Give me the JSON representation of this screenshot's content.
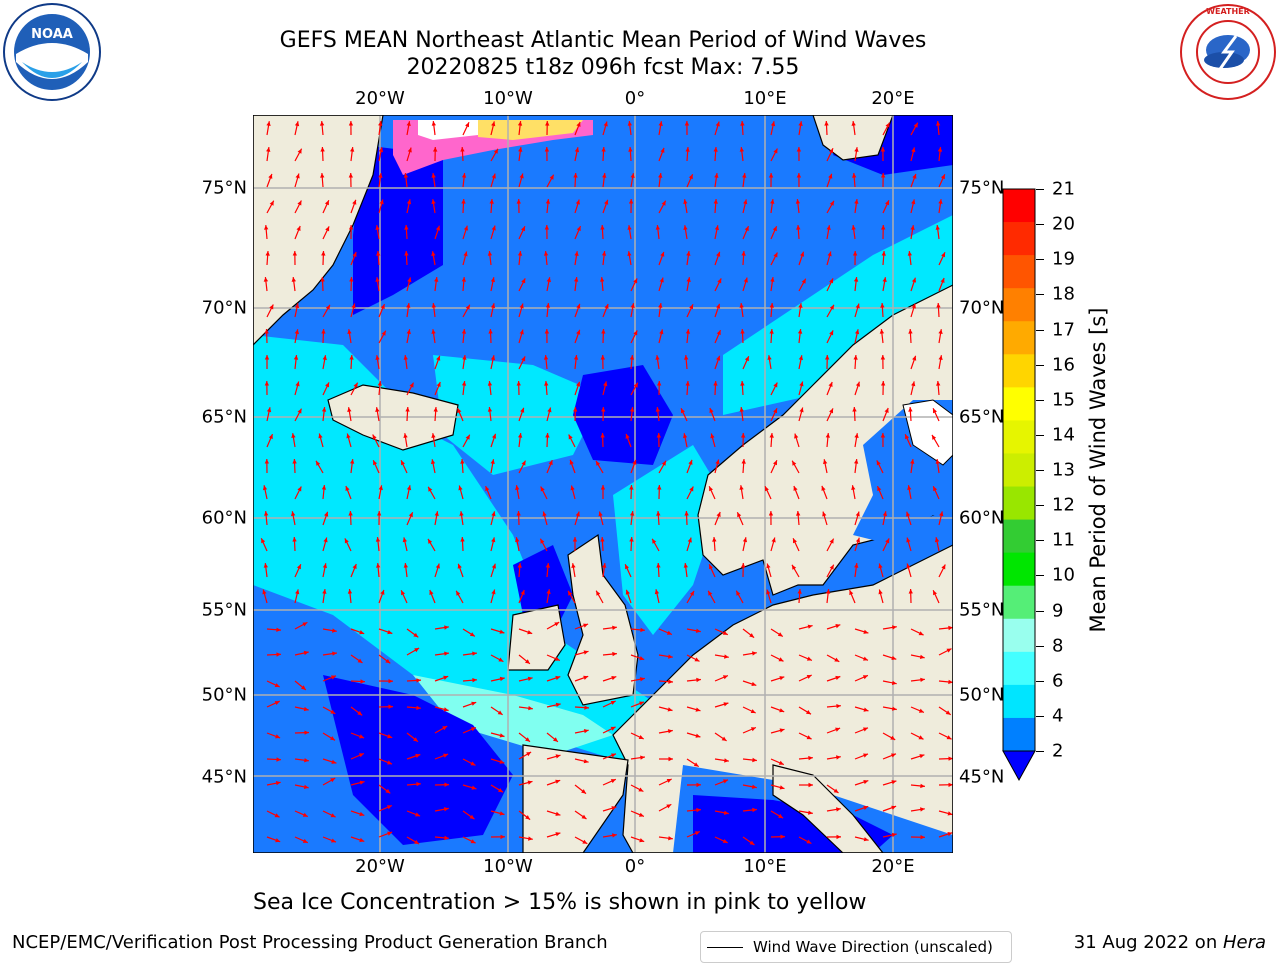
{
  "title_line1": "GEFS MEAN Northeast Atlantic Mean Period of Wind Waves",
  "title_line2": "20220825 t18z 096h fcst   Max: 7.55",
  "lon_labels": [
    "20°W",
    "10°W",
    "0°",
    "10°E",
    "20°E"
  ],
  "lat_labels": [
    "75°N",
    "70°N",
    "65°N",
    "60°N",
    "55°N",
    "50°N",
    "45°N"
  ],
  "legend_label": "Wind Wave Direction (unscaled)",
  "colorbar": {
    "label": "Mean Period of Wind Waves [s]",
    "ticks": [
      "21",
      "20",
      "19",
      "18",
      "17",
      "16",
      "15",
      "14",
      "13",
      "12",
      "11",
      "10",
      "9",
      "8",
      "6",
      "4",
      "2"
    ],
    "colors": [
      "#ff0000",
      "#ff2a00",
      "#ff5500",
      "#ff8000",
      "#ffaa00",
      "#ffd500",
      "#ffff00",
      "#e6f500",
      "#ccee00",
      "#99e600",
      "#33cc33",
      "#00e600",
      "#55ee77",
      "#99ffee",
      "#44ffff",
      "#00e5ff",
      "#0080ff"
    ],
    "under_color": "#0000ff"
  },
  "note": "Sea Ice Concentration > 15% is shown in pink to yellow",
  "footer_left": "NCEP/EMC/Verification Post Processing Product Generation Branch",
  "footer_date": "31 Aug 2022 on ",
  "footer_host": "Hera",
  "logos": {
    "left_text": "NOAA",
    "right_text": "NATIONAL WEATHER SERVICE"
  },
  "map_colors": {
    "land": "#efecdc",
    "sea_deep": "#0000ff",
    "sea_mid": "#1a7aff",
    "sea_light": "#00e8ff",
    "sea_pale": "#80fff0",
    "ice": "#ff66cc",
    "arrow": "#ff0000"
  }
}
